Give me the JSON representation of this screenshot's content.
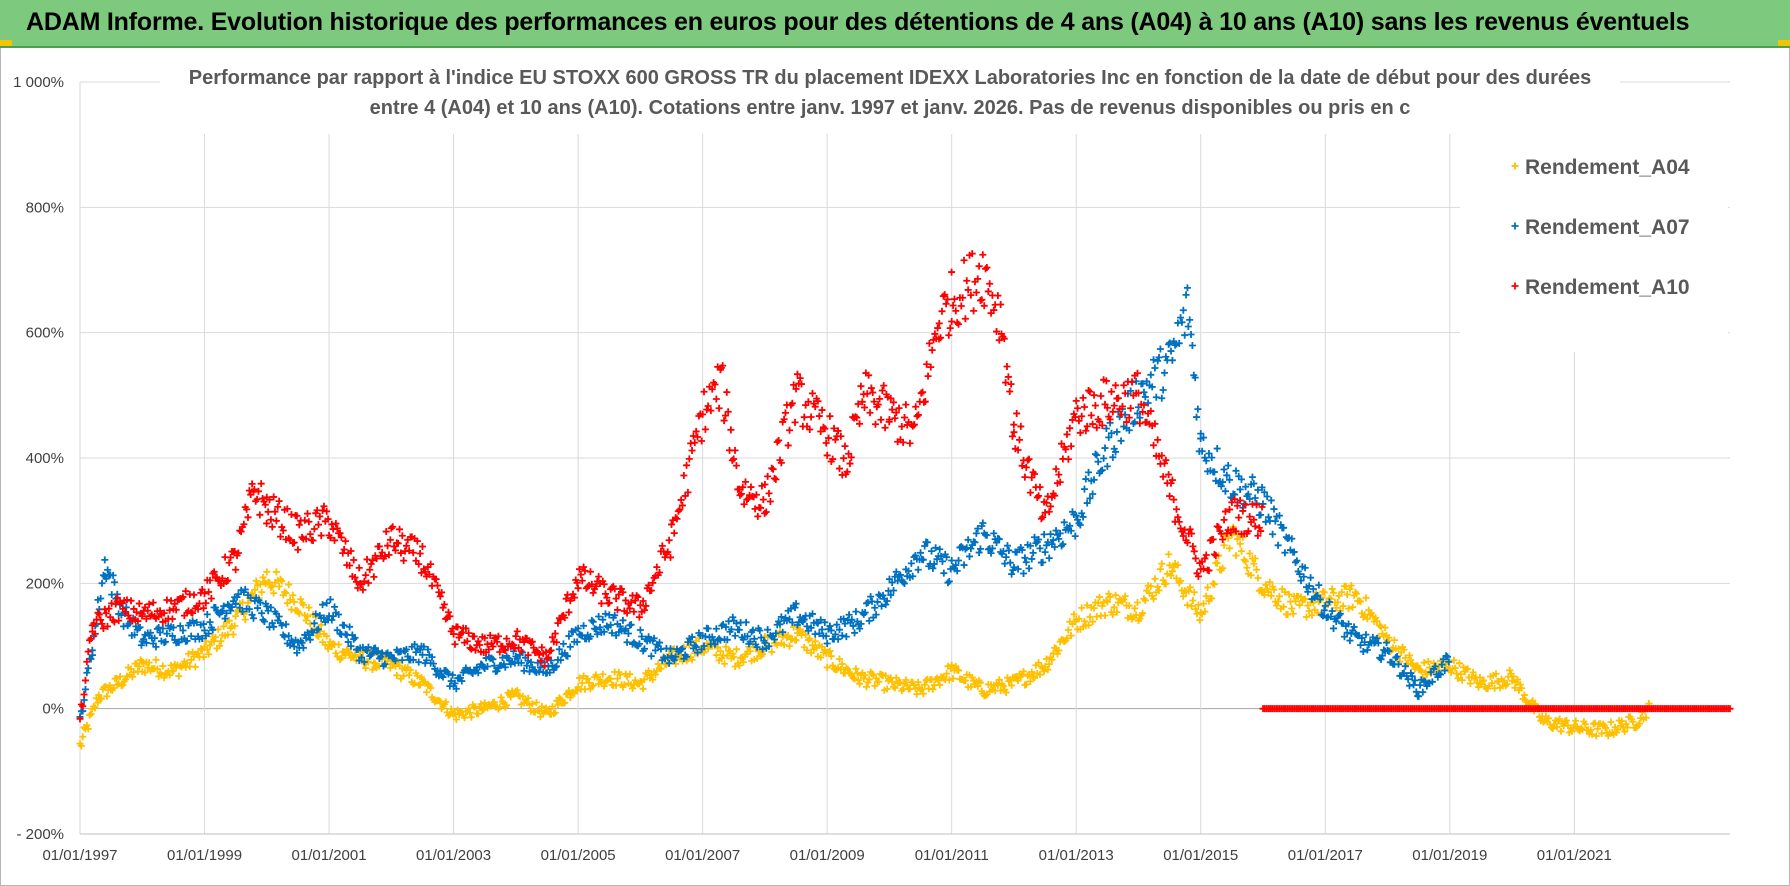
{
  "header": {
    "title": "ADAM Informe. Evolution historique des performances en euros pour des détentions de 4 ans (A04) à 10 ans (A10) sans les revenus éventuels"
  },
  "chart_data": {
    "type": "scatter",
    "title_line1": "Performance par rapport à l'indice EU STOXX 600 GROSS TR  du placement IDEXX Laboratories Inc en fonction de la date de début pour des durées",
    "title_line2": "entre 4 (A04) et 10 ans (A10). Cotations entre janv. 1997 et janv. 2026. Pas de revenus disponibles ou pris en c",
    "x_range": [
      1997.0,
      2023.5
    ],
    "ylim": [
      -200,
      1000
    ],
    "y_ticks": [
      -200,
      0,
      200,
      400,
      600,
      800,
      1000
    ],
    "y_tick_labels": [
      "- 200%",
      "0%",
      "200%",
      "400%",
      "600%",
      "800%",
      "1 000%"
    ],
    "x_ticks": [
      1997,
      1999,
      2001,
      2003,
      2005,
      2007,
      2009,
      2011,
      2013,
      2015,
      2017,
      2019,
      2021
    ],
    "x_tick_labels": [
      "01/01/1997",
      "01/01/1999",
      "01/01/2001",
      "01/01/2003",
      "01/01/2005",
      "01/01/2007",
      "01/01/2009",
      "01/01/2011",
      "01/01/2013",
      "01/01/2015",
      "01/01/2017",
      "01/01/2019",
      "01/01/2021"
    ],
    "legend_position": "top-right",
    "marker": "+",
    "series": [
      {
        "name": "Rendement_A04",
        "color": "#ffc000",
        "x_end": 2022.2,
        "points": [
          [
            1997.0,
            -60
          ],
          [
            1997.3,
            20
          ],
          [
            1997.6,
            40
          ],
          [
            1998.0,
            70
          ],
          [
            1998.5,
            60
          ],
          [
            1999.0,
            90
          ],
          [
            1999.5,
            140
          ],
          [
            2000.0,
            210
          ],
          [
            2000.5,
            170
          ],
          [
            2001.0,
            100
          ],
          [
            2001.5,
            80
          ],
          [
            2002.0,
            70
          ],
          [
            2002.5,
            40
          ],
          [
            2003.0,
            -10
          ],
          [
            2003.5,
            0
          ],
          [
            2004.0,
            20
          ],
          [
            2004.5,
            -10
          ],
          [
            2005.0,
            40
          ],
          [
            2005.5,
            50
          ],
          [
            2006.0,
            40
          ],
          [
            2006.5,
            80
          ],
          [
            2007.0,
            100
          ],
          [
            2007.5,
            80
          ],
          [
            2008.0,
            100
          ],
          [
            2008.5,
            120
          ],
          [
            2009.0,
            80
          ],
          [
            2009.5,
            50
          ],
          [
            2010.0,
            40
          ],
          [
            2010.5,
            30
          ],
          [
            2011.0,
            60
          ],
          [
            2011.5,
            30
          ],
          [
            2012.0,
            40
          ],
          [
            2012.5,
            70
          ],
          [
            2013.0,
            140
          ],
          [
            2013.5,
            170
          ],
          [
            2014.0,
            160
          ],
          [
            2014.5,
            230
          ],
          [
            2015.0,
            150
          ],
          [
            2015.5,
            280
          ],
          [
            2016.0,
            200
          ],
          [
            2016.5,
            160
          ],
          [
            2017.0,
            170
          ],
          [
            2017.5,
            180
          ],
          [
            2018.0,
            110
          ],
          [
            2018.5,
            60
          ],
          [
            2019.0,
            70
          ],
          [
            2019.5,
            40
          ],
          [
            2020.0,
            50
          ],
          [
            2020.5,
            -20
          ],
          [
            2021.0,
            -30
          ],
          [
            2021.5,
            -35
          ],
          [
            2022.0,
            -20
          ],
          [
            2022.2,
            0
          ]
        ]
      },
      {
        "name": "Rendement_A07",
        "color": "#0070c0",
        "x_end": 2019.0,
        "points": [
          [
            1997.0,
            -20
          ],
          [
            1997.2,
            100
          ],
          [
            1997.4,
            230
          ],
          [
            1997.7,
            150
          ],
          [
            1998.0,
            110
          ],
          [
            1998.5,
            120
          ],
          [
            1999.0,
            130
          ],
          [
            1999.5,
            180
          ],
          [
            2000.0,
            150
          ],
          [
            2000.5,
            100
          ],
          [
            2001.0,
            160
          ],
          [
            2001.5,
            90
          ],
          [
            2002.0,
            80
          ],
          [
            2002.5,
            90
          ],
          [
            2003.0,
            40
          ],
          [
            2003.5,
            70
          ],
          [
            2004.0,
            80
          ],
          [
            2004.5,
            60
          ],
          [
            2005.0,
            120
          ],
          [
            2005.5,
            140
          ],
          [
            2006.0,
            110
          ],
          [
            2006.5,
            80
          ],
          [
            2007.0,
            110
          ],
          [
            2007.5,
            130
          ],
          [
            2008.0,
            110
          ],
          [
            2008.5,
            150
          ],
          [
            2009.0,
            120
          ],
          [
            2009.5,
            140
          ],
          [
            2010.0,
            190
          ],
          [
            2010.5,
            250
          ],
          [
            2011.0,
            220
          ],
          [
            2011.5,
            280
          ],
          [
            2012.0,
            230
          ],
          [
            2012.5,
            260
          ],
          [
            2013.0,
            300
          ],
          [
            2013.5,
            420
          ],
          [
            2014.0,
            500
          ],
          [
            2014.5,
            550
          ],
          [
            2014.8,
            640
          ],
          [
            2015.0,
            420
          ],
          [
            2015.5,
            360
          ],
          [
            2016.0,
            330
          ],
          [
            2016.5,
            240
          ],
          [
            2017.0,
            160
          ],
          [
            2017.5,
            110
          ],
          [
            2018.0,
            90
          ],
          [
            2018.5,
            30
          ],
          [
            2019.0,
            80
          ]
        ]
      },
      {
        "name": "Rendement_A10",
        "color": "#ff0000",
        "x_end": 2016.0,
        "zero_from": 2016.0,
        "zero_to": 2023.5,
        "points": [
          [
            1997.0,
            -20
          ],
          [
            1997.2,
            130
          ],
          [
            1997.6,
            160
          ],
          [
            1998.0,
            150
          ],
          [
            1998.5,
            160
          ],
          [
            1999.0,
            180
          ],
          [
            1999.5,
            240
          ],
          [
            1999.8,
            350
          ],
          [
            2000.0,
            320
          ],
          [
            2000.5,
            280
          ],
          [
            2001.0,
            300
          ],
          [
            2001.5,
            200
          ],
          [
            2002.0,
            270
          ],
          [
            2002.5,
            240
          ],
          [
            2003.0,
            120
          ],
          [
            2003.5,
            100
          ],
          [
            2004.0,
            110
          ],
          [
            2004.5,
            80
          ],
          [
            2005.0,
            210
          ],
          [
            2005.5,
            180
          ],
          [
            2006.0,
            160
          ],
          [
            2006.5,
            270
          ],
          [
            2007.0,
            470
          ],
          [
            2007.3,
            520
          ],
          [
            2007.6,
            350
          ],
          [
            2008.0,
            330
          ],
          [
            2008.5,
            500
          ],
          [
            2009.0,
            440
          ],
          [
            2009.3,
            390
          ],
          [
            2009.6,
            500
          ],
          [
            2010.0,
            470
          ],
          [
            2010.4,
            440
          ],
          [
            2010.8,
            620
          ],
          [
            2011.0,
            650
          ],
          [
            2011.5,
            700
          ],
          [
            2011.8,
            620
          ],
          [
            2012.0,
            450
          ],
          [
            2012.5,
            300
          ],
          [
            2013.0,
            470
          ],
          [
            2013.5,
            490
          ],
          [
            2014.0,
            500
          ],
          [
            2014.5,
            350
          ],
          [
            2015.0,
            220
          ],
          [
            2015.5,
            310
          ],
          [
            2016.0,
            300
          ]
        ]
      }
    ]
  }
}
